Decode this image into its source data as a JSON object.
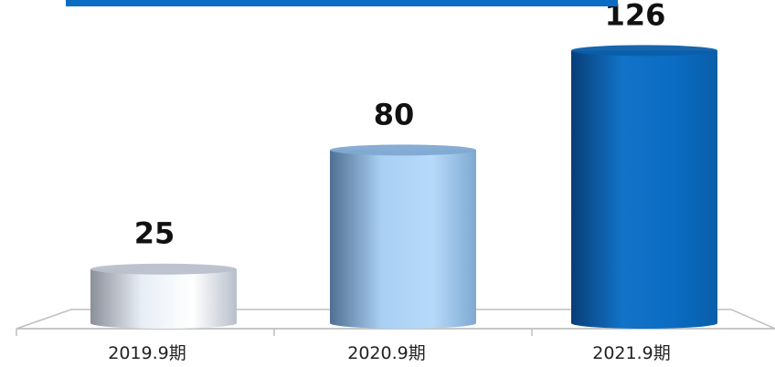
{
  "chart_data": {
    "type": "bar",
    "style": "3d-cylinder",
    "title": "",
    "xlabel": "",
    "ylabel": "",
    "categories": [
      "2019.9期",
      "2020.9期",
      "2021.9期"
    ],
    "values": [
      25,
      80,
      126
    ],
    "data_labels": [
      "25",
      "80",
      "126"
    ],
    "ylim": [
      0,
      135
    ],
    "grid": false,
    "legend": "none",
    "colors": {
      "accent_bar": "#0a6cc2",
      "bar_gradients": [
        [
          "#8a8f99",
          "#e8eef6",
          "#ffffff",
          "#b9c0cb"
        ],
        [
          "#4f6f92",
          "#a9cff3",
          "#b7dafa",
          "#7fa9d2"
        ],
        [
          "#083e78",
          "#1273c8",
          "#0a6cc2",
          "#0b5ea9"
        ]
      ],
      "floor_line": "#bfbfbf"
    }
  }
}
